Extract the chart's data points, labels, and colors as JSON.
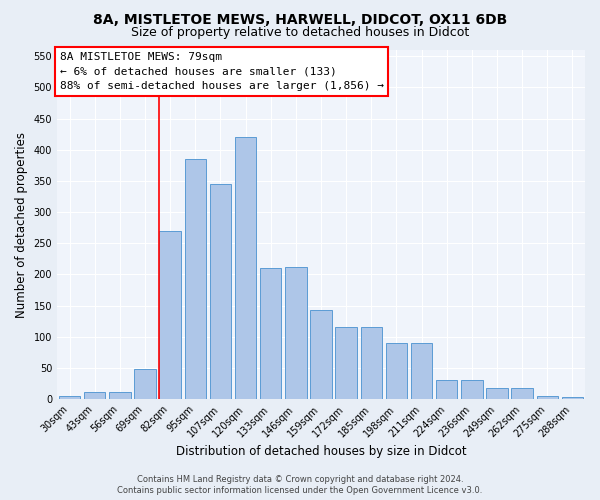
{
  "title1": "8A, MISTLETOE MEWS, HARWELL, DIDCOT, OX11 6DB",
  "title2": "Size of property relative to detached houses in Didcot",
  "xlabel": "Distribution of detached houses by size in Didcot",
  "ylabel": "Number of detached properties",
  "categories": [
    "30sqm",
    "43sqm",
    "56sqm",
    "69sqm",
    "82sqm",
    "95sqm",
    "107sqm",
    "120sqm",
    "133sqm",
    "146sqm",
    "159sqm",
    "172sqm",
    "185sqm",
    "198sqm",
    "211sqm",
    "224sqm",
    "236sqm",
    "249sqm",
    "262sqm",
    "275sqm",
    "288sqm"
  ],
  "values": [
    5,
    11,
    12,
    48,
    270,
    385,
    345,
    420,
    210,
    212,
    143,
    115,
    115,
    90,
    90,
    30,
    30,
    17,
    17,
    5,
    3
  ],
  "bar_color": "#aec6e8",
  "bar_edge_color": "#5b9bd5",
  "annotation_text_line1": "8A MISTLETOE MEWS: 79sqm",
  "annotation_text_line2": "← 6% of detached houses are smaller (133)",
  "annotation_text_line3": "88% of semi-detached houses are larger (1,856) →",
  "footnote1": "Contains HM Land Registry data © Crown copyright and database right 2024.",
  "footnote2": "Contains public sector information licensed under the Open Government Licence v3.0.",
  "ylim": [
    0,
    560
  ],
  "yticks": [
    0,
    50,
    100,
    150,
    200,
    250,
    300,
    350,
    400,
    450,
    500,
    550
  ],
  "bg_color": "#e8eef6",
  "plot_bg_color": "#f0f4fb",
  "grid_color": "#ffffff",
  "title_fontsize": 10,
  "subtitle_fontsize": 9,
  "tick_fontsize": 7,
  "label_fontsize": 8.5,
  "footnote_fontsize": 6,
  "annotation_fontsize": 8
}
